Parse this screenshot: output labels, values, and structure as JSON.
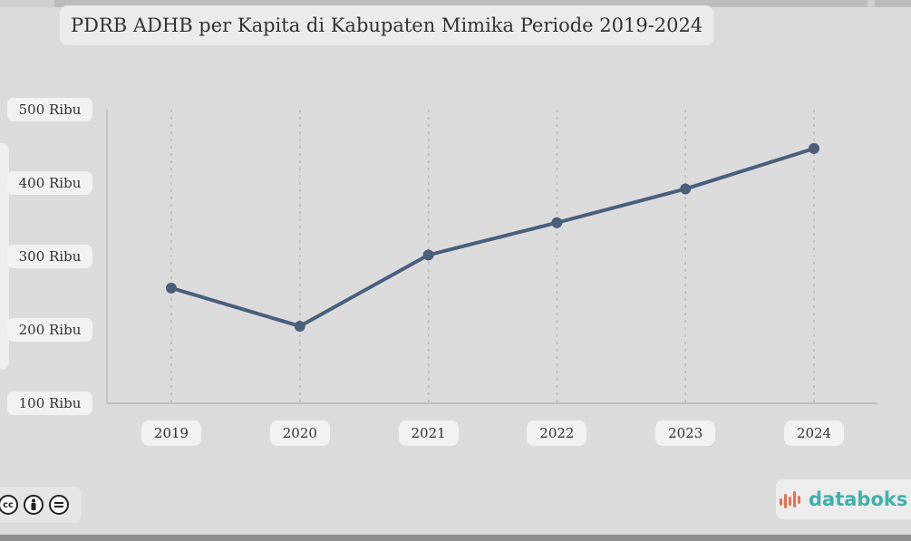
{
  "chart_data": {
    "type": "line",
    "title": "PDRB ADHB per Kapita di Kabupaten Mimika Periode 2019-2024",
    "categories": [
      "2019",
      "2020",
      "2021",
      "2022",
      "2023",
      "2024"
    ],
    "series": [
      {
        "values": [
          257,
          205,
          302,
          346,
          392,
          447
        ]
      }
    ],
    "y_ticks": [
      {
        "value": 500,
        "label": "500 Ribu"
      },
      {
        "value": 400,
        "label": "400 Ribu"
      },
      {
        "value": 300,
        "label": "300 Ribu"
      },
      {
        "value": 200,
        "label": "200 Ribu"
      },
      {
        "value": 100,
        "label": "100 Ribu"
      }
    ],
    "ylim": [
      100,
      500
    ],
    "xlabel": "",
    "ylabel": "",
    "grid": "vertical dotted",
    "legend": "none",
    "line_color": "#4a5f7c"
  },
  "footer": {
    "license_icons": [
      "creative-commons-icon",
      "attribution-icon",
      "no-derivatives-icon"
    ],
    "brand": "databoks",
    "brand_color": "#3fb1ab"
  }
}
